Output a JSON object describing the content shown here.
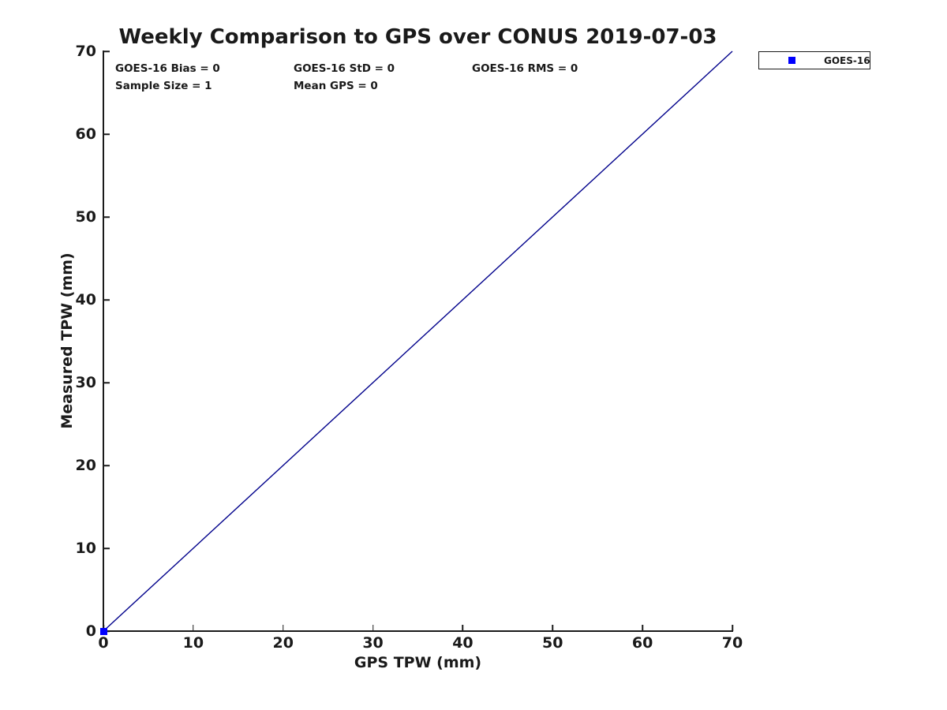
{
  "chart_data": {
    "type": "scatter",
    "title": "Weekly Comparison to GPS over CONUS 2019-07-03",
    "xlabel": "GPS TPW (mm)",
    "ylabel": "Measured TPW (mm)",
    "xlim": [
      0,
      70
    ],
    "ylim": [
      0,
      70
    ],
    "x_ticks": [
      0,
      10,
      20,
      30,
      40,
      50,
      60,
      70
    ],
    "y_ticks": [
      0,
      10,
      20,
      30,
      40,
      50,
      60,
      70
    ],
    "grid": false,
    "series": [
      {
        "name": "GOES-16",
        "marker": "square",
        "color": "#0000ff",
        "points": [
          [
            0,
            0
          ]
        ]
      }
    ],
    "identity_line": {
      "from": [
        0,
        0
      ],
      "to": [
        70,
        70
      ],
      "color": "#00008b"
    },
    "stats_annotations": [
      {
        "text": "GOES-16 Bias = 0",
        "row": 0,
        "col": 0
      },
      {
        "text": "GOES-16 StD = 0",
        "row": 0,
        "col": 1
      },
      {
        "text": "GOES-16 RMS = 0",
        "row": 0,
        "col": 2
      },
      {
        "text": "Sample Size = 1",
        "row": 1,
        "col": 0
      },
      {
        "text": "Mean GPS = 0",
        "row": 1,
        "col": 1
      }
    ],
    "legend": {
      "position": "outside-top-right",
      "entries": [
        {
          "label": "GOES-16",
          "marker": "square",
          "color": "#0000ff"
        }
      ]
    },
    "colors": {
      "text": "#1a1a1a",
      "axis": "#1a1a1a",
      "background": "#ffffff"
    }
  }
}
